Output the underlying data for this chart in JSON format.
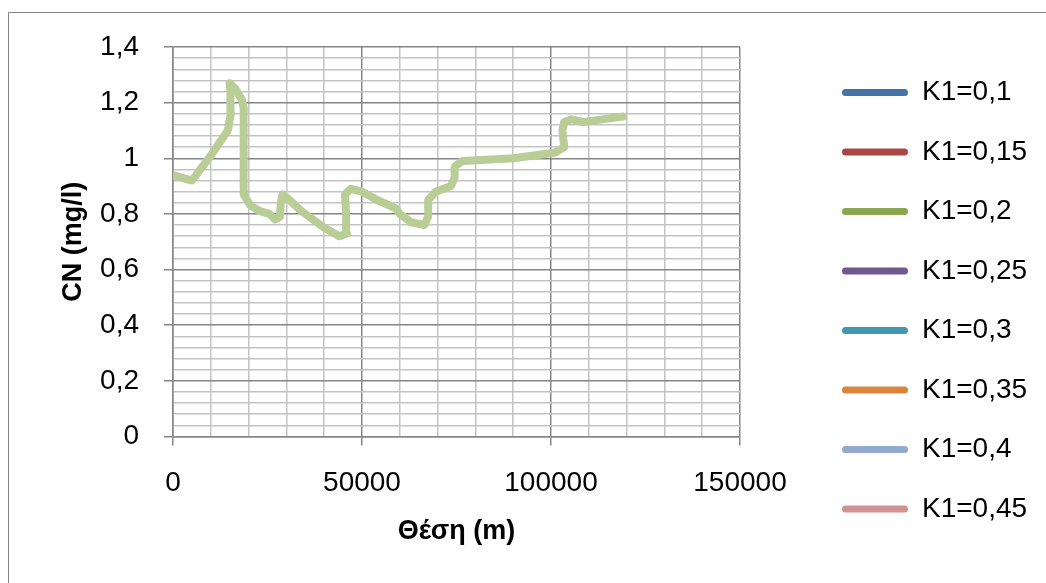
{
  "chart_data": {
    "type": "line",
    "xlabel": "Θέση (m)",
    "ylabel": "CN (mg/l)",
    "x": [
      0,
      5000,
      10000,
      14500,
      15300,
      15200,
      15000,
      16500,
      18200,
      18700,
      18700,
      20500,
      23000,
      25500,
      27000,
      28300,
      28500,
      29000,
      30000,
      34000,
      40000,
      44000,
      46000,
      45800,
      45500,
      47000,
      50000,
      54000,
      59000,
      60000,
      63000,
      66500,
      67500,
      67500,
      69500,
      73500,
      74500,
      74500,
      76500,
      90000,
      101000,
      103500,
      103000,
      103500,
      105500,
      108500,
      113500,
      119000
    ],
    "series": [
      {
        "name": "K1=0,1",
        "color": "#4572a7",
        "values": [
          null,
          null,
          null,
          null,
          null,
          null,
          null,
          null,
          null,
          null,
          null,
          null,
          null,
          null,
          null,
          null,
          null,
          null,
          null,
          null,
          null,
          null,
          null,
          null,
          null,
          null,
          null,
          null,
          null,
          null,
          null,
          null,
          null,
          null,
          null,
          null,
          null,
          null,
          null,
          null,
          null,
          null,
          null,
          null,
          null,
          null,
          null,
          null
        ]
      },
      {
        "name": "K1=0,15",
        "color": "#aa4643",
        "values": [
          null,
          null,
          null,
          null,
          null,
          null,
          null,
          null,
          null,
          null,
          null,
          null,
          null,
          null,
          null,
          null,
          null,
          null,
          null,
          null,
          null,
          null,
          null,
          null,
          null,
          null,
          null,
          null,
          null,
          null,
          null,
          null,
          null,
          null,
          null,
          null,
          null,
          null,
          null,
          null,
          null,
          null,
          null,
          null,
          null,
          null,
          null,
          null
        ]
      },
      {
        "name": "K1=0,2",
        "color": "#89a54e",
        "values": [
          null,
          null,
          null,
          null,
          null,
          null,
          null,
          null,
          null,
          null,
          null,
          null,
          null,
          null,
          null,
          null,
          null,
          null,
          null,
          null,
          null,
          null,
          null,
          null,
          null,
          null,
          null,
          null,
          null,
          null,
          null,
          null,
          null,
          null,
          null,
          null,
          null,
          null,
          null,
          null,
          null,
          null,
          null,
          null,
          null,
          null,
          null,
          null
        ]
      },
      {
        "name": "K1=0,25",
        "color": "#71588f",
        "values": [
          null,
          null,
          null,
          null,
          null,
          null,
          null,
          null,
          null,
          null,
          null,
          null,
          null,
          null,
          null,
          null,
          null,
          null,
          null,
          null,
          null,
          null,
          null,
          null,
          null,
          null,
          null,
          null,
          null,
          null,
          null,
          null,
          null,
          null,
          null,
          null,
          null,
          null,
          null,
          null,
          null,
          null,
          null,
          null,
          null,
          null,
          null,
          null
        ]
      },
      {
        "name": "K1=0,3",
        "color": "#4198af",
        "values": [
          null,
          null,
          null,
          null,
          null,
          null,
          null,
          null,
          null,
          null,
          null,
          null,
          null,
          null,
          null,
          null,
          null,
          null,
          null,
          null,
          null,
          null,
          null,
          null,
          null,
          null,
          null,
          null,
          null,
          null,
          null,
          null,
          null,
          null,
          null,
          null,
          null,
          null,
          null,
          null,
          null,
          null,
          null,
          null,
          null,
          null,
          null,
          null
        ]
      },
      {
        "name": "K1=0,35",
        "color": "#db843d",
        "values": [
          null,
          null,
          null,
          null,
          null,
          null,
          null,
          null,
          null,
          null,
          null,
          null,
          null,
          null,
          null,
          null,
          null,
          null,
          null,
          null,
          null,
          null,
          null,
          null,
          null,
          null,
          null,
          null,
          null,
          null,
          null,
          null,
          null,
          null,
          null,
          null,
          null,
          null,
          null,
          null,
          null,
          null,
          null,
          null,
          null,
          null,
          null,
          null
        ]
      },
      {
        "name": "K1=0,4",
        "color": "#93a9cf",
        "values": [
          null,
          null,
          null,
          null,
          null,
          null,
          null,
          null,
          null,
          null,
          null,
          null,
          null,
          null,
          null,
          null,
          null,
          null,
          null,
          null,
          null,
          null,
          null,
          null,
          null,
          null,
          null,
          null,
          null,
          null,
          null,
          null,
          null,
          null,
          null,
          null,
          null,
          null,
          null,
          null,
          null,
          null,
          null,
          null,
          null,
          null,
          null,
          null
        ]
      },
      {
        "name": "K1=0,45",
        "color": "#d19392",
        "values": [
          null,
          null,
          null,
          null,
          null,
          null,
          null,
          null,
          null,
          null,
          null,
          null,
          null,
          null,
          null,
          null,
          null,
          null,
          null,
          null,
          null,
          null,
          null,
          null,
          null,
          null,
          null,
          null,
          null,
          null,
          null,
          null,
          null,
          null,
          null,
          null,
          null,
          null,
          null,
          null,
          null,
          null,
          null,
          null,
          null,
          null,
          null,
          null
        ]
      },
      {
        "color": "#b9cd96",
        "values": [
          0.94,
          0.92,
          1.01,
          1.1,
          1.16,
          1.24,
          1.27,
          1.25,
          1.21,
          1.18,
          0.87,
          0.83,
          0.81,
          0.8,
          0.78,
          0.79,
          0.84,
          0.87,
          0.86,
          0.81,
          0.75,
          0.72,
          0.73,
          0.8,
          0.87,
          0.89,
          0.88,
          0.85,
          0.82,
          0.8,
          0.77,
          0.76,
          0.79,
          0.85,
          0.88,
          0.9,
          0.93,
          0.97,
          0.99,
          1.0,
          1.02,
          1.04,
          1.1,
          1.13,
          1.14,
          1.13,
          1.14,
          1.15
        ]
      }
    ],
    "xlim": [
      0,
      150000
    ],
    "xticks": [
      0,
      {
        "value": 10000,
        "label": null
      },
      {
        "value": 20000,
        "label": null
      },
      {
        "value": 30000,
        "label": null
      },
      {
        "value": 40000,
        "label": null
      },
      50000,
      {
        "value": 60000,
        "label": null
      },
      {
        "value": 70000,
        "label": null
      },
      {
        "value": 80000,
        "label": null
      },
      {
        "value": 90000,
        "label": null
      },
      100000,
      {
        "value": 110000,
        "label": null
      },
      {
        "value": 120000,
        "label": null
      },
      {
        "value": 130000,
        "label": null
      },
      {
        "value": 140000,
        "label": null
      },
      150000
    ],
    "ylim": [
      0,
      1.4
    ],
    "yticks": [
      0,
      {
        "value": 0.04,
        "label": null
      },
      {
        "value": 0.08,
        "label": null
      },
      {
        "value": 0.12,
        "label": null
      },
      {
        "value": 0.16,
        "label": null
      },
      {
        "value": 0.2,
        "label": "0,2"
      },
      {
        "value": 0.24,
        "label": null
      },
      {
        "value": 0.28,
        "label": null
      },
      {
        "value": 0.32,
        "label": null
      },
      {
        "value": 0.36,
        "label": null
      },
      {
        "value": 0.4,
        "label": "0,4"
      },
      {
        "value": 0.44,
        "label": null
      },
      {
        "value": 0.48,
        "label": null
      },
      {
        "value": 0.52,
        "label": null
      },
      {
        "value": 0.56,
        "label": null
      },
      {
        "value": 0.6,
        "label": "0,6"
      },
      {
        "value": 0.64,
        "label": null
      },
      {
        "value": 0.68,
        "label": null
      },
      {
        "value": 0.72,
        "label": null
      },
      {
        "value": 0.76,
        "label": null
      },
      {
        "value": 0.8,
        "label": "0,8"
      },
      {
        "value": 0.84,
        "label": null
      },
      {
        "value": 0.88,
        "label": null
      },
      {
        "value": 0.92,
        "label": null
      },
      {
        "value": 0.96,
        "label": null
      },
      1,
      {
        "value": 1.04,
        "label": null
      },
      {
        "value": 1.08,
        "label": null
      },
      {
        "value": 1.12,
        "label": null
      },
      {
        "value": 1.16,
        "label": null
      },
      {
        "value": 1.2,
        "label": "1,2"
      },
      {
        "value": 1.24,
        "label": null
      },
      {
        "value": 1.28,
        "label": null
      },
      {
        "value": 1.32,
        "label": null
      },
      {
        "value": 1.36,
        "label": null
      },
      {
        "value": 1.4,
        "label": "1,4"
      }
    ],
    "grid": true,
    "legend": "right",
    "marker": "none"
  }
}
